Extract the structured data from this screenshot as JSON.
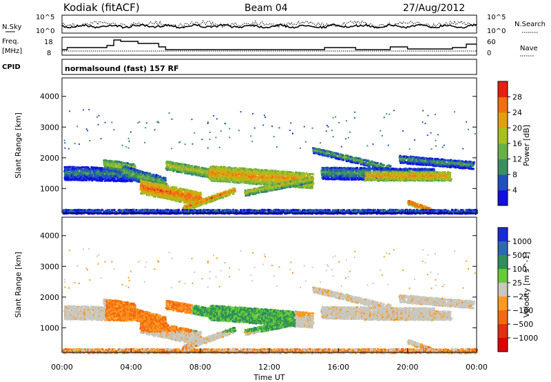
{
  "header": {
    "station": "Kodiak (fitACF)",
    "beam": "Beam 04",
    "date": "27/Aug/2012"
  },
  "params": {
    "nsky_label": "N.Sky",
    "nsearch_label": "N.Search",
    "noise_ticks": [
      "10^5",
      "10^0"
    ],
    "noise_ticks_right": [
      "10^5",
      "10^0"
    ],
    "freq_label_1": "Freq.",
    "freq_label_2": "[MHz]",
    "freq_ticks": [
      "18",
      "8"
    ],
    "nave_label": "Nave",
    "nave_ticks": [
      "60",
      "0"
    ],
    "cpid_label": "CPID",
    "cpid_text": "normalsound (fast) 157 RF"
  },
  "chart_data": [
    {
      "type": "heatmap",
      "name": "power",
      "ylabel": "Slant Range [km]",
      "xlabel": "",
      "xlim": [
        "00:00",
        "24:00"
      ],
      "ylim": [
        200,
        4600
      ],
      "yticks": [
        1000,
        2000,
        3000,
        4000
      ],
      "colorbar": {
        "label": "Power [dB]",
        "ticks": [
          4,
          8,
          12,
          16,
          20,
          24,
          28
        ],
        "range": [
          0,
          32
        ],
        "colors": [
          "#1010e0",
          "#2050c0",
          "#3a8f60",
          "#68b048",
          "#a8c020",
          "#e0a010",
          "#f07010",
          "#e82010"
        ]
      }
    },
    {
      "type": "heatmap",
      "name": "velocity",
      "ylabel": "Slant Range [km]",
      "xlabel": "Time UT",
      "xlim": [
        "00:00",
        "24:00"
      ],
      "ylim": [
        200,
        4600
      ],
      "yticks": [
        1000,
        2000,
        3000,
        4000
      ],
      "xticks": [
        "00:00",
        "04:00",
        "08:00",
        "12:00",
        "16:00",
        "20:00",
        "00:00"
      ],
      "colorbar": {
        "label": "Velocity [m s^-1]",
        "ticks": [
          "1000",
          "500",
          "100",
          "25",
          "−25",
          "−100",
          "−500",
          "−1000"
        ],
        "colors": [
          "#1a2ad8",
          "#2d6ab0",
          "#2f8f5a",
          "#66cc33",
          "#c8c8c0",
          "#ff9a20",
          "#f06a10",
          "#e03010",
          "#e00000"
        ]
      }
    }
  ]
}
